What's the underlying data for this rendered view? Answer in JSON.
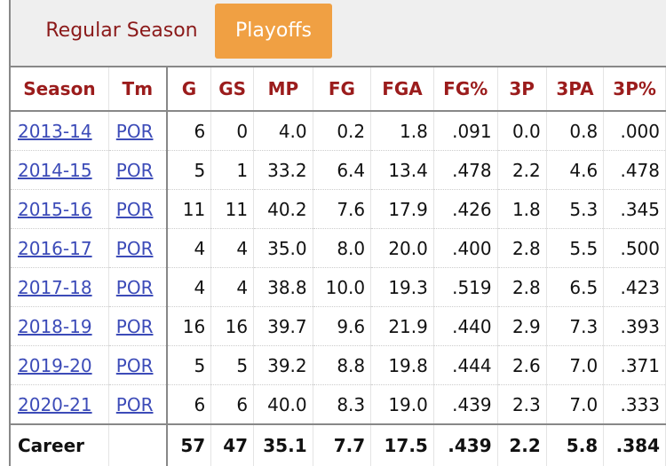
{
  "tabs": {
    "regular_season": "Regular Season",
    "playoffs": "Playoffs",
    "active": "playoffs"
  },
  "colors": {
    "header_text": "#9b1c1c",
    "active_tab_bg": "#f0a043",
    "link": "#3c4bb8"
  },
  "table": {
    "headers": [
      "Season",
      "Tm",
      "G",
      "GS",
      "MP",
      "FG",
      "FGA",
      "FG%",
      "3P",
      "3PA",
      "3P%"
    ],
    "rows": [
      [
        "2013-14",
        "POR",
        "6",
        "0",
        "4.0",
        "0.2",
        "1.8",
        ".091",
        "0.0",
        "0.8",
        ".000"
      ],
      [
        "2014-15",
        "POR",
        "5",
        "1",
        "33.2",
        "6.4",
        "13.4",
        ".478",
        "2.2",
        "4.6",
        ".478"
      ],
      [
        "2015-16",
        "POR",
        "11",
        "11",
        "40.2",
        "7.6",
        "17.9",
        ".426",
        "1.8",
        "5.3",
        ".345"
      ],
      [
        "2016-17",
        "POR",
        "4",
        "4",
        "35.0",
        "8.0",
        "20.0",
        ".400",
        "2.8",
        "5.5",
        ".500"
      ],
      [
        "2017-18",
        "POR",
        "4",
        "4",
        "38.8",
        "10.0",
        "19.3",
        ".519",
        "2.8",
        "6.5",
        ".423"
      ],
      [
        "2018-19",
        "POR",
        "16",
        "16",
        "39.7",
        "9.6",
        "21.9",
        ".440",
        "2.9",
        "7.3",
        ".393"
      ],
      [
        "2019-20",
        "POR",
        "5",
        "5",
        "39.2",
        "8.8",
        "19.8",
        ".444",
        "2.6",
        "7.0",
        ".371"
      ],
      [
        "2020-21",
        "POR",
        "6",
        "6",
        "40.0",
        "8.3",
        "19.0",
        ".439",
        "2.3",
        "7.0",
        ".333"
      ]
    ],
    "footer": [
      "Career",
      "",
      "57",
      "47",
      "35.1",
      "7.7",
      "17.5",
      ".439",
      "2.2",
      "5.8",
      ".384"
    ]
  }
}
